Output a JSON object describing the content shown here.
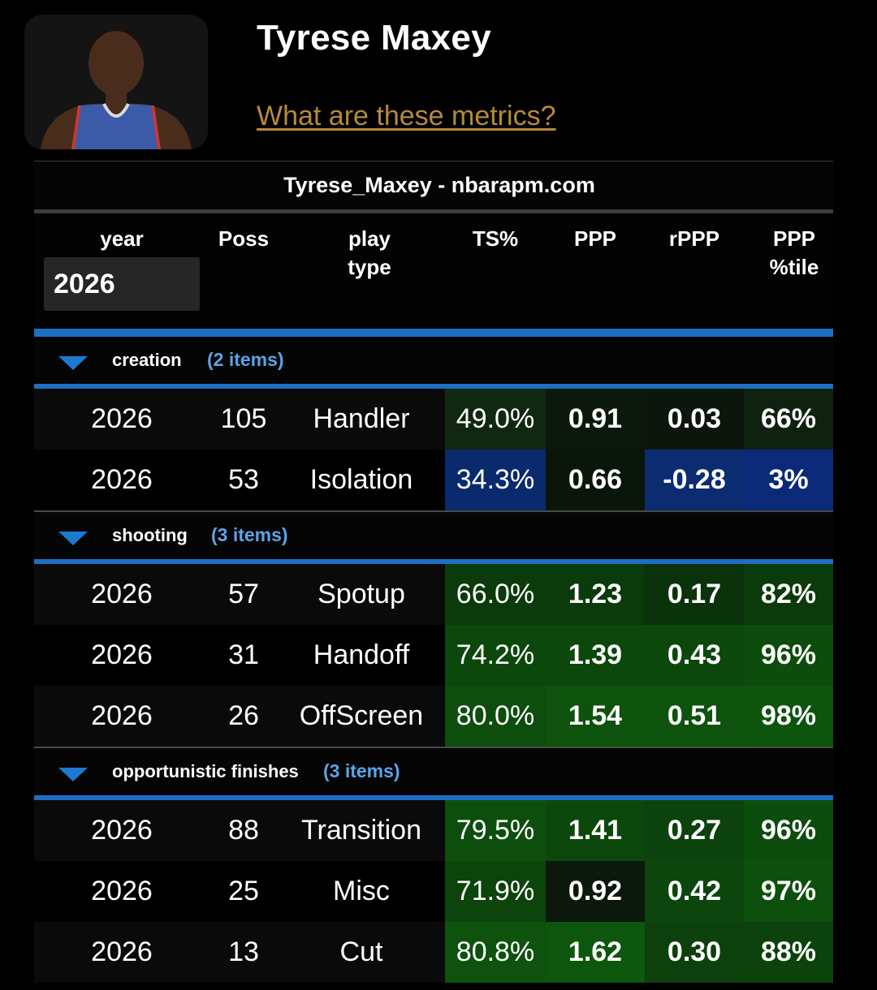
{
  "player": {
    "name": "Tyrese Maxey",
    "metrics_link": "What are these metrics?"
  },
  "table": {
    "title": "Tyrese_Maxey - nbarapm.com",
    "headers": {
      "year": "year",
      "poss": "Poss",
      "play_type": "play type",
      "ts": "TS%",
      "ppp": "PPP",
      "rppp": "rPPP",
      "ppp_pct": "PPP %tile"
    },
    "year_filter": "2026",
    "groups": [
      {
        "label": "creation",
        "count": "(2 items)",
        "rows": [
          {
            "year": "2026",
            "poss": "105",
            "play": "Handler",
            "ts": "49.0%",
            "ppp": "0.91",
            "rppp": "0.03",
            "pct": "66%"
          },
          {
            "year": "2026",
            "poss": "53",
            "play": "Isolation",
            "ts": "34.3%",
            "ppp": "0.66",
            "rppp": "-0.28",
            "pct": "3%"
          }
        ]
      },
      {
        "label": "shooting",
        "count": "(3 items)",
        "rows": [
          {
            "year": "2026",
            "poss": "57",
            "play": "Spotup",
            "ts": "66.0%",
            "ppp": "1.23",
            "rppp": "0.17",
            "pct": "82%"
          },
          {
            "year": "2026",
            "poss": "31",
            "play": "Handoff",
            "ts": "74.2%",
            "ppp": "1.39",
            "rppp": "0.43",
            "pct": "96%"
          },
          {
            "year": "2026",
            "poss": "26",
            "play": "OffScreen",
            "ts": "80.0%",
            "ppp": "1.54",
            "rppp": "0.51",
            "pct": "98%"
          }
        ]
      },
      {
        "label": "opportunistic finishes",
        "count": "(3 items)",
        "rows": [
          {
            "year": "2026",
            "poss": "88",
            "play": "Transition",
            "ts": "79.5%",
            "ppp": "1.41",
            "rppp": "0.27",
            "pct": "96%"
          },
          {
            "year": "2026",
            "poss": "25",
            "play": "Misc",
            "ts": "71.9%",
            "ppp": "0.92",
            "rppp": "0.42",
            "pct": "97%"
          },
          {
            "year": "2026",
            "poss": "13",
            "play": "Cut",
            "ts": "80.8%",
            "ppp": "1.62",
            "rppp": "0.30",
            "pct": "88%"
          }
        ]
      }
    ]
  },
  "colors": {
    "accent_blue": "#1c6fc4",
    "link_gold": "#b58a3c",
    "good_green": "#0d4a0d",
    "bad_blue": "#0a2a6e"
  }
}
